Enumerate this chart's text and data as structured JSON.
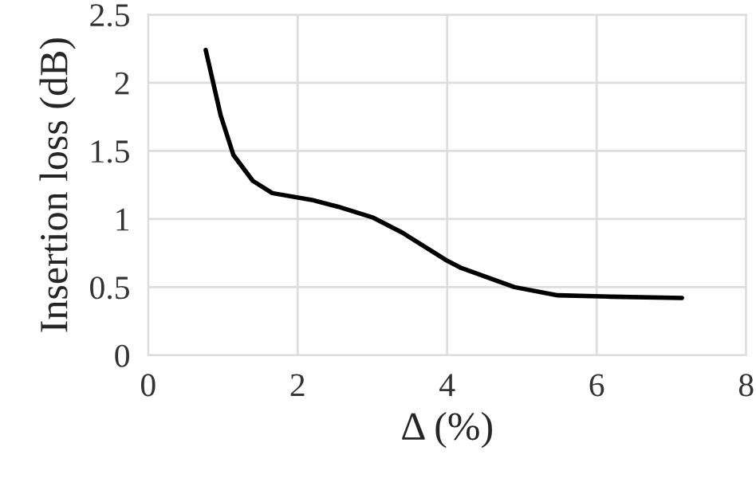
{
  "chart_data": {
    "type": "line",
    "xlabel": "Δ (%)",
    "ylabel": "Insertion loss (dB)",
    "x": [
      0.77,
      0.97,
      1.14,
      1.4,
      1.66,
      2.19,
      2.54,
      3.01,
      3.4,
      3.98,
      4.19,
      4.9,
      5.48,
      6.19,
      7.14
    ],
    "series": [
      {
        "color": "#000000",
        "values": [
          2.24,
          1.76,
          1.47,
          1.28,
          1.19,
          1.14,
          1.09,
          1.01,
          0.9,
          0.7,
          0.64,
          0.5,
          0.44,
          0.43,
          0.42
        ]
      }
    ],
    "xlim": [
      0,
      8
    ],
    "xticks": [
      0,
      2,
      4,
      6,
      8
    ],
    "ylim": [
      0,
      2.5
    ],
    "yticks": [
      0,
      {
        "value": 0.5,
        "label": "0.5"
      },
      1,
      {
        "value": 1.5,
        "label": "1.5"
      },
      2,
      {
        "value": 2.5,
        "label": "2.5"
      }
    ],
    "grid": true,
    "line_style": "solid"
  }
}
